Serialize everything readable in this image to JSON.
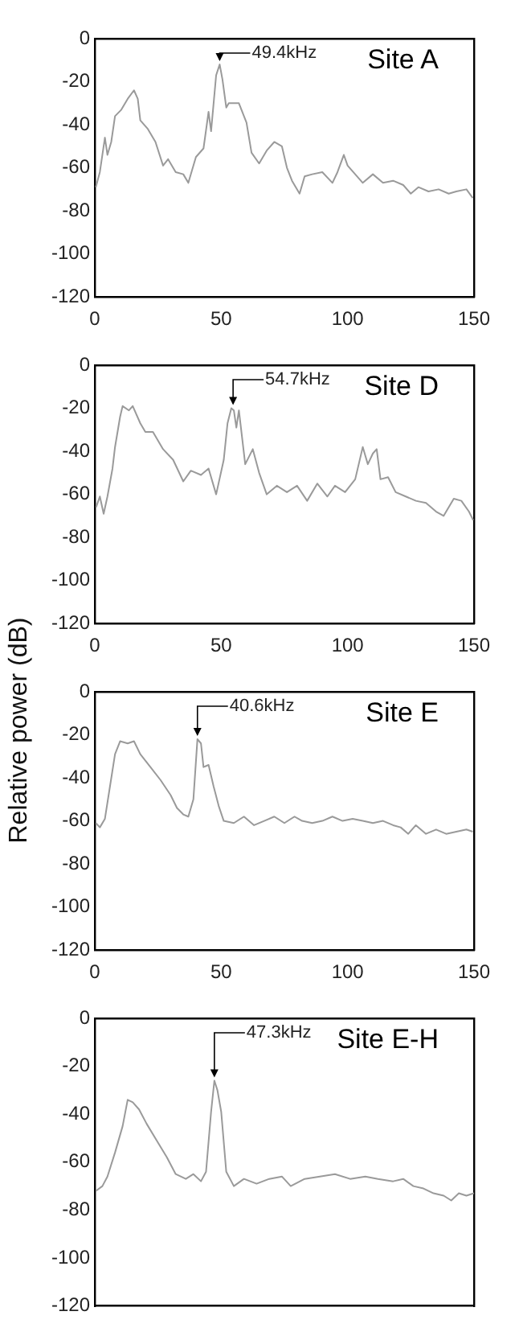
{
  "chart_data": [
    {
      "type": "line",
      "title": "Site A",
      "x": [
        0.4,
        2,
        4,
        5,
        6.5,
        8,
        10.5,
        13,
        15.5,
        17,
        18,
        21,
        24,
        27,
        29,
        32,
        35,
        37,
        40,
        43,
        45,
        46,
        48,
        49.4,
        50.5,
        52,
        53,
        57,
        60,
        62,
        65,
        68,
        71,
        74,
        76,
        78,
        81,
        83,
        86,
        90,
        94,
        96,
        98.5,
        100,
        103,
        106,
        110,
        114,
        118,
        122,
        125,
        128,
        132,
        136,
        140,
        143,
        147,
        149.5
      ],
      "series": [
        {
          "color": "#9a9a9a",
          "values": [
            -69,
            -62,
            -46,
            -54,
            -48,
            -36,
            -33,
            -28,
            -24,
            -28,
            -38,
            -42,
            -48,
            -59,
            -56,
            -62,
            -63,
            -67,
            -55,
            -51,
            -34,
            -43,
            -17,
            -12,
            -19,
            -32,
            -30,
            -30,
            -39,
            -53,
            -58,
            -52,
            -48,
            -50,
            -60,
            -66,
            -72,
            -64,
            -63,
            -62,
            -67,
            -62,
            -54,
            -59,
            -63,
            -67,
            -63,
            -67,
            -66,
            -68,
            -72,
            -69,
            -71,
            -70,
            -72,
            -71,
            -70,
            -74
          ]
        }
      ],
      "xlim": [
        0,
        150
      ],
      "xticks": [
        0,
        50,
        100,
        150
      ],
      "ylim": [
        -120,
        0
      ],
      "yticks": [
        -120,
        -100,
        -80,
        -60,
        -40,
        -20,
        0
      ],
      "annotations": [
        {
          "text": "49.4kHz",
          "x": 49.4,
          "y": -12
        }
      ]
    },
    {
      "type": "line",
      "title": "Site D",
      "x": [
        0.5,
        2,
        3.5,
        5,
        7,
        8,
        10,
        11,
        13.5,
        15,
        18,
        20,
        23,
        27,
        31,
        35,
        38,
        42,
        45,
        48,
        51,
        52.5,
        54,
        55,
        56,
        57,
        59.5,
        62.5,
        65,
        68,
        72,
        76,
        80,
        84,
        88,
        92,
        95,
        99,
        103,
        106,
        108,
        110,
        111.5,
        113,
        116,
        119,
        123,
        127,
        131,
        135,
        138,
        142,
        145,
        148,
        149.7
      ],
      "series": [
        {
          "color": "#9a9a9a",
          "values": [
            -66,
            -61,
            -69,
            -61,
            -48,
            -38,
            -24,
            -19,
            -21,
            -19,
            -27,
            -31,
            -31,
            -39,
            -44,
            -54,
            -49,
            -51,
            -48,
            -60,
            -44,
            -27,
            -20,
            -21,
            -29,
            -21,
            -46,
            -39,
            -50,
            -60,
            -56,
            -59,
            -56,
            -63,
            -55,
            -61,
            -56,
            -59,
            -53,
            -38,
            -46,
            -41,
            -39,
            -53,
            -52,
            -59,
            -61,
            -63,
            -64,
            -68,
            -70,
            -62,
            -63,
            -68,
            -72
          ]
        }
      ],
      "xlim": [
        0,
        150
      ],
      "xticks": [
        0,
        50,
        100,
        150
      ],
      "ylim": [
        -120,
        0
      ],
      "yticks": [
        -120,
        -100,
        -80,
        -60,
        -40,
        -20,
        0
      ],
      "annotations": [
        {
          "text": "54.7kHz",
          "x": 54.7,
          "y": -20
        }
      ]
    },
    {
      "type": "line",
      "title": "Site E",
      "ylabel": "Relative power (dB)",
      "x": [
        0.4,
        2,
        4,
        6,
        8,
        10,
        13,
        15.5,
        18,
        22,
        26,
        30,
        32.5,
        35,
        37,
        39,
        40.6,
        42,
        43,
        45,
        47,
        49,
        51,
        55,
        59,
        63,
        67,
        71,
        75,
        79,
        82,
        86,
        90,
        94,
        98,
        102,
        106,
        110,
        114,
        118,
        121,
        124,
        127,
        131,
        135,
        139,
        143,
        147,
        149.5
      ],
      "series": [
        {
          "color": "#9a9a9a",
          "values": [
            -61,
            -63,
            -59,
            -44,
            -29,
            -23,
            -24,
            -23,
            -29,
            -35,
            -41,
            -48,
            -54,
            -57,
            -58,
            -50,
            -22,
            -24,
            -35,
            -34,
            -44,
            -53,
            -60,
            -61,
            -58,
            -62,
            -60,
            -58,
            -61,
            -58,
            -60,
            -61,
            -60,
            -58,
            -60,
            -59,
            -60,
            -61,
            -60,
            -62,
            -63,
            -66,
            -62,
            -66,
            -64,
            -66,
            -65,
            -64,
            -65
          ]
        }
      ],
      "xlim": [
        0,
        150
      ],
      "xticks": [
        0,
        50,
        100,
        150
      ],
      "ylim": [
        -120,
        0
      ],
      "yticks": [
        -120,
        -100,
        -80,
        -60,
        -40,
        -20,
        0
      ],
      "annotations": [
        {
          "text": "40.6kHz",
          "x": 40.6,
          "y": -22
        }
      ]
    },
    {
      "type": "line",
      "title": "Site E-H",
      "tick_labels": "y",
      "x": [
        0.5,
        3,
        5,
        8,
        11,
        13,
        15,
        17.5,
        20.5,
        24.5,
        28.5,
        32,
        36,
        39,
        42,
        44,
        46,
        47.3,
        48.5,
        50,
        52,
        55,
        59,
        64,
        69,
        74,
        77.5,
        83,
        89,
        95,
        101,
        107,
        112,
        118,
        122,
        126,
        130,
        134,
        138,
        141,
        144,
        147,
        150
      ],
      "series": [
        {
          "color": "#9a9a9a",
          "values": [
            -72,
            -70,
            -66,
            -56,
            -45,
            -34,
            -35,
            -38,
            -44,
            -51,
            -58,
            -65,
            -67,
            -65,
            -68,
            -64,
            -39,
            -26,
            -30,
            -39,
            -64,
            -70,
            -67,
            -69,
            -67,
            -66,
            -70,
            -67,
            -66,
            -65,
            -67,
            -66,
            -67,
            -68,
            -67,
            -70,
            -71,
            -73,
            -74,
            -76,
            -73,
            -74,
            -73
          ]
        }
      ],
      "xlim": [
        0,
        150
      ],
      "xticks": [
        0,
        50,
        100,
        150
      ],
      "ylim": [
        -120,
        0
      ],
      "yticks": [
        -120,
        -100,
        -80,
        -60,
        -40,
        -20,
        0
      ],
      "annotations": [
        {
          "text": "47.3kHz",
          "x": 47.3,
          "y": -26
        }
      ]
    }
  ]
}
